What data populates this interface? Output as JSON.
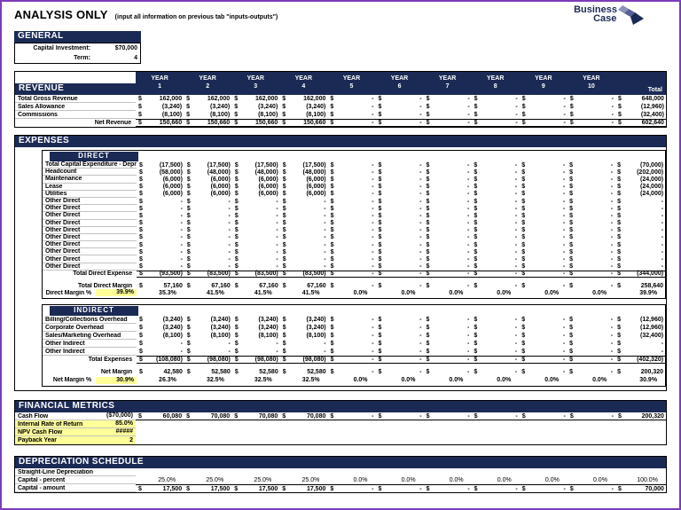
{
  "page": {
    "title": "ANALYSIS ONLY",
    "subtitle": "(input all information on previous tab \"inputs-outputs\")",
    "logo_line1": "Business",
    "logo_line2": "Case"
  },
  "colors": {
    "navy": "#1b2a55",
    "input_yellow": "#ffff99",
    "frame_purple": "#7b3db8"
  },
  "general": {
    "header": "GENERAL",
    "rows": [
      {
        "label": "Capital Investment:",
        "value": "$70,000"
      },
      {
        "label": "Term:",
        "value": "4"
      }
    ]
  },
  "columns": {
    "year_label": "YEAR",
    "years": [
      "1",
      "2",
      "3",
      "4",
      "5",
      "6",
      "7",
      "8",
      "9",
      "10"
    ],
    "total_label": "Total"
  },
  "revenue": {
    "header": "REVENUE",
    "rows": [
      {
        "label": "Total Gross Revenue",
        "grid": true,
        "cells": [
          "162,000",
          "162,000",
          "162,000",
          "162,000",
          "-",
          "-",
          "-",
          "-",
          "-",
          "-"
        ],
        "total": "648,000"
      },
      {
        "label": "Sales Allowance",
        "grid": true,
        "cells": [
          "(3,240)",
          "(3,240)",
          "(3,240)",
          "(3,240)",
          "-",
          "-",
          "-",
          "-",
          "-",
          "-"
        ],
        "total": "(12,960)"
      },
      {
        "label": "Commissions",
        "grid": true,
        "cells": [
          "(8,100)",
          "(8,100)",
          "(8,100)",
          "(8,100)",
          "-",
          "-",
          "-",
          "-",
          "-",
          "-"
        ],
        "total": "(32,400)"
      },
      {
        "label": "Net Revenue",
        "align": "right",
        "bold": true,
        "top_line": true,
        "bottom_line": true,
        "cells": [
          "150,660",
          "150,660",
          "150,660",
          "150,660",
          "-",
          "-",
          "-",
          "-",
          "-",
          "-"
        ],
        "total": "602,640"
      }
    ]
  },
  "expenses": {
    "header": "EXPENSES",
    "direct": {
      "header": "DIRECT",
      "rows": [
        {
          "label": "Total Capital Expenditure - Depreciation",
          "grid": true,
          "cells": [
            "(17,500)",
            "(17,500)",
            "(17,500)",
            "(17,500)",
            "-",
            "-",
            "-",
            "-",
            "-",
            "-"
          ],
          "total": "(70,000)"
        },
        {
          "label": "Headcount",
          "grid": true,
          "cells": [
            "(58,000)",
            "(48,000)",
            "(48,000)",
            "(48,000)",
            "-",
            "-",
            "-",
            "-",
            "-",
            "-"
          ],
          "total": "(202,000)"
        },
        {
          "label": "Maintenance",
          "grid": true,
          "cells": [
            "(6,000)",
            "(6,000)",
            "(6,000)",
            "(6,000)",
            "-",
            "-",
            "-",
            "-",
            "-",
            "-"
          ],
          "total": "(24,000)"
        },
        {
          "label": "Lease",
          "grid": true,
          "cells": [
            "(6,000)",
            "(6,000)",
            "(6,000)",
            "(6,000)",
            "-",
            "-",
            "-",
            "-",
            "-",
            "-"
          ],
          "total": "(24,000)"
        },
        {
          "label": "Utilities",
          "grid": true,
          "cells": [
            "(6,000)",
            "(6,000)",
            "(6,000)",
            "(6,000)",
            "-",
            "-",
            "-",
            "-",
            "-",
            "-"
          ],
          "total": "(24,000)"
        },
        {
          "label": "Other Direct",
          "grid": true,
          "cells": [
            "-",
            "-",
            "-",
            "-",
            "-",
            "-",
            "-",
            "-",
            "-",
            "-"
          ],
          "total": "-"
        },
        {
          "label": "Other Direct",
          "grid": true,
          "cells": [
            "-",
            "-",
            "-",
            "-",
            "-",
            "-",
            "-",
            "-",
            "-",
            "-"
          ],
          "total": "-"
        },
        {
          "label": "Other Direct",
          "grid": true,
          "cells": [
            "-",
            "-",
            "-",
            "-",
            "-",
            "-",
            "-",
            "-",
            "-",
            "-"
          ],
          "total": "-"
        },
        {
          "label": "Other Direct",
          "grid": true,
          "cells": [
            "-",
            "-",
            "-",
            "-",
            "-",
            "-",
            "-",
            "-",
            "-",
            "-"
          ],
          "total": "-"
        },
        {
          "label": "Other Direct",
          "grid": true,
          "cells": [
            "-",
            "-",
            "-",
            "-",
            "-",
            "-",
            "-",
            "-",
            "-",
            "-"
          ],
          "total": "-"
        },
        {
          "label": "Other Direct",
          "grid": true,
          "cells": [
            "-",
            "-",
            "-",
            "-",
            "-",
            "-",
            "-",
            "-",
            "-",
            "-"
          ],
          "total": "-"
        },
        {
          "label": "Other Direct",
          "grid": true,
          "cells": [
            "-",
            "-",
            "-",
            "-",
            "-",
            "-",
            "-",
            "-",
            "-",
            "-"
          ],
          "total": "-"
        },
        {
          "label": "Other Direct",
          "grid": true,
          "cells": [
            "-",
            "-",
            "-",
            "-",
            "-",
            "-",
            "-",
            "-",
            "-",
            "-"
          ],
          "total": "-"
        },
        {
          "label": "Other Direct",
          "grid": true,
          "cells": [
            "-",
            "-",
            "-",
            "-",
            "-",
            "-",
            "-",
            "-",
            "-",
            "-"
          ],
          "total": "-"
        },
        {
          "label": "Other Direct",
          "grid": true,
          "cells": [
            "-",
            "-",
            "-",
            "-",
            "-",
            "-",
            "-",
            "-",
            "-",
            "-"
          ],
          "total": "-"
        },
        {
          "label": "Total Direct Expense",
          "align": "right",
          "top_line": true,
          "bottom_line": true,
          "cells": [
            "(93,500)",
            "(83,500)",
            "(83,500)",
            "(83,500)",
            "-",
            "-",
            "-",
            "-",
            "-",
            "-"
          ],
          "total": "(344,000)"
        },
        {
          "label": "Total Direct Margin",
          "align": "right",
          "bold": true,
          "gap_before": true,
          "cells": [
            "57,160",
            "67,160",
            "67,160",
            "67,160",
            "-",
            "-",
            "-",
            "-",
            "-",
            "-"
          ],
          "total": "258,640"
        },
        {
          "label": "Direct Margin %",
          "align": "right",
          "bold": true,
          "percent": true,
          "value0": "39.9%",
          "value0_yellow": true,
          "cells": [
            "35.3%",
            "41.5%",
            "41.5%",
            "41.5%",
            "0.0%",
            "0.0%",
            "0.0%",
            "0.0%",
            "0.0%",
            "0.0%"
          ],
          "total": "39.9%"
        }
      ]
    },
    "indirect": {
      "header": "INDIRECT",
      "rows": [
        {
          "label": "Billing/Collections Overhead",
          "grid": true,
          "cells": [
            "(3,240)",
            "(3,240)",
            "(3,240)",
            "(3,240)",
            "-",
            "-",
            "-",
            "-",
            "-",
            "-"
          ],
          "total": "(12,960)"
        },
        {
          "label": "Corporate Overhead",
          "grid": true,
          "cells": [
            "(3,240)",
            "(3,240)",
            "(3,240)",
            "(3,240)",
            "-",
            "-",
            "-",
            "-",
            "-",
            "-"
          ],
          "total": "(12,960)"
        },
        {
          "label": "Sales/Marketing Overhead",
          "grid": true,
          "cells": [
            "(8,100)",
            "(8,100)",
            "(8,100)",
            "(8,100)",
            "-",
            "-",
            "-",
            "-",
            "-",
            "-"
          ],
          "total": "(32,400)"
        },
        {
          "label": "Other Indirect",
          "grid": true,
          "cells": [
            "-",
            "-",
            "-",
            "-",
            "-",
            "-",
            "-",
            "-",
            "-",
            "-"
          ],
          "total": "-"
        },
        {
          "label": "Other Indirect",
          "grid": true,
          "cells": [
            "-",
            "-",
            "-",
            "-",
            "-",
            "-",
            "-",
            "-",
            "-",
            "-"
          ],
          "total": "-"
        },
        {
          "label": "Total Expenses",
          "align": "right",
          "top_line": true,
          "bottom_line": true,
          "cells": [
            "(108,080)",
            "(98,080)",
            "(98,080)",
            "(98,080)",
            "-",
            "-",
            "-",
            "-",
            "-",
            "-"
          ],
          "total": "(402,320)"
        },
        {
          "label": "Net Margin",
          "align": "right",
          "bold": true,
          "gap_before": true,
          "cells": [
            "42,580",
            "52,580",
            "52,580",
            "52,580",
            "-",
            "-",
            "-",
            "-",
            "-",
            "-"
          ],
          "total": "200,320"
        },
        {
          "label": "Net Margin %",
          "align": "right",
          "bold": true,
          "percent": true,
          "value0": "30.9%",
          "value0_yellow": true,
          "cells": [
            "26.3%",
            "32.5%",
            "32.5%",
            "32.5%",
            "0.0%",
            "0.0%",
            "0.0%",
            "0.0%",
            "0.0%",
            "0.0%"
          ],
          "total": "30.9%"
        }
      ]
    }
  },
  "financial_metrics": {
    "header": "FINANCIAL METRICS",
    "rows": [
      {
        "label": "Cash Flow",
        "grid": true,
        "value0": "($70,000)",
        "bottom_line": true,
        "cells": [
          "60,080",
          "70,080",
          "70,080",
          "70,080",
          "-",
          "-",
          "-",
          "-",
          "-",
          "-"
        ],
        "total": "200,320"
      },
      {
        "label": "Internal Rate of Return",
        "bold": true,
        "row_yellow": true,
        "grid": true,
        "value0": "85.0%",
        "cells": [
          "",
          "",
          "",
          "",
          "",
          "",
          "",
          "",
          "",
          ""
        ],
        "total": ""
      },
      {
        "label": "NPV Cash Flow",
        "bold": true,
        "row_yellow": true,
        "grid": true,
        "value0": "#####",
        "cells": [
          "",
          "",
          "",
          "",
          "",
          "",
          "",
          "",
          "",
          ""
        ],
        "total": ""
      },
      {
        "label": "Payback Year",
        "bold": true,
        "row_yellow": true,
        "value0": "2",
        "cells": [
          "",
          "",
          "",
          "",
          "",
          "",
          "",
          "",
          "",
          ""
        ],
        "total": ""
      }
    ]
  },
  "depreciation": {
    "header": "DEPRECIATION SCHEDULE",
    "rows": [
      {
        "label": "Straight-Line Depreciation",
        "grid": true,
        "cells": [
          "",
          "",
          "",
          "",
          "",
          "",
          "",
          "",
          "",
          ""
        ],
        "total": ""
      },
      {
        "label": "Capital - percent",
        "grid": true,
        "percent": true,
        "cells": [
          "25.0%",
          "25.0%",
          "25.0%",
          "25.0%",
          "0.0%",
          "0.0%",
          "0.0%",
          "0.0%",
          "0.0%",
          "0.0%"
        ],
        "total": "100.0%"
      },
      {
        "label": "Capital - amount",
        "grid": true,
        "top_line": true,
        "cells": [
          "17,500",
          "17,500",
          "17,500",
          "17,500",
          "-",
          "-",
          "-",
          "-",
          "-",
          "-"
        ],
        "total": "70,000"
      }
    ]
  }
}
